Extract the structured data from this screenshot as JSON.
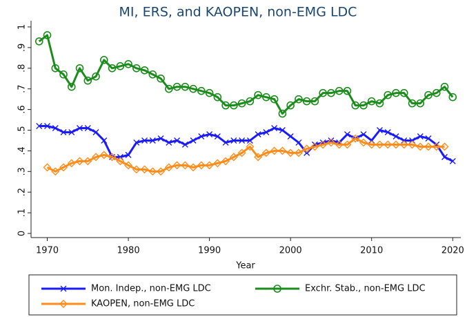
{
  "chart_data": {
    "type": "line",
    "title": "MI, ERS, and KAOPEN, non-EMG LDC",
    "x_label": "Year",
    "x": [
      1969,
      1970,
      1971,
      1972,
      1973,
      1974,
      1975,
      1976,
      1977,
      1978,
      1979,
      1980,
      1981,
      1982,
      1983,
      1984,
      1985,
      1986,
      1987,
      1988,
      1989,
      1990,
      1991,
      1992,
      1993,
      1994,
      1995,
      1996,
      1997,
      1998,
      1999,
      2000,
      2001,
      2002,
      2003,
      2004,
      2005,
      2006,
      2007,
      2008,
      2009,
      2010,
      2011,
      2012,
      2013,
      2014,
      2015,
      2016,
      2017,
      2018,
      2019,
      2020
    ],
    "series": [
      {
        "name": "Mon. Indep., non-EMG LDC",
        "color": "#1a1aff",
        "marker": "x",
        "values": [
          0.52,
          0.52,
          0.51,
          0.49,
          0.49,
          0.51,
          0.51,
          0.49,
          0.45,
          0.37,
          0.37,
          0.38,
          0.44,
          0.45,
          0.45,
          0.46,
          0.44,
          0.45,
          0.43,
          0.45,
          0.47,
          0.48,
          0.47,
          0.44,
          0.45,
          0.45,
          0.45,
          0.48,
          0.49,
          0.51,
          0.5,
          0.47,
          0.44,
          0.39,
          0.43,
          0.44,
          0.45,
          0.44,
          0.48,
          0.46,
          0.48,
          0.45,
          0.5,
          0.49,
          0.47,
          0.45,
          0.45,
          0.47,
          0.46,
          0.43,
          0.37,
          0.35
        ]
      },
      {
        "name": "Exchr. Stab., non-EMG LDC",
        "color": "#1a8c1a",
        "marker": "circle",
        "values": [
          0.93,
          0.96,
          0.8,
          0.77,
          0.71,
          0.8,
          0.74,
          0.76,
          0.84,
          0.8,
          0.81,
          0.82,
          0.8,
          0.79,
          0.77,
          0.75,
          0.7,
          0.71,
          0.71,
          0.7,
          0.69,
          0.68,
          0.66,
          0.62,
          0.62,
          0.63,
          0.64,
          0.67,
          0.66,
          0.65,
          0.58,
          0.62,
          0.65,
          0.64,
          0.64,
          0.68,
          0.68,
          0.69,
          0.69,
          0.62,
          0.62,
          0.64,
          0.63,
          0.67,
          0.68,
          0.68,
          0.63,
          0.63,
          0.67,
          0.68,
          0.71,
          0.66
        ]
      },
      {
        "name": "KAOPEN, non-EMG LDC",
        "color": "#ff8c1a",
        "marker": "diamond",
        "values": [
          null,
          0.32,
          0.3,
          0.32,
          0.34,
          0.35,
          0.35,
          0.37,
          0.38,
          0.37,
          0.35,
          0.33,
          0.31,
          0.31,
          0.3,
          0.3,
          0.32,
          0.33,
          0.33,
          0.32,
          0.33,
          0.33,
          0.34,
          0.35,
          0.37,
          0.39,
          0.42,
          0.37,
          0.39,
          0.4,
          0.4,
          0.39,
          0.39,
          0.41,
          0.42,
          0.43,
          0.44,
          0.43,
          0.43,
          0.46,
          0.44,
          0.43,
          0.43,
          0.43,
          0.43,
          0.43,
          0.43,
          0.42,
          0.42,
          0.42,
          0.42,
          null
        ]
      }
    ],
    "xlim": [
      1968,
      2021
    ],
    "xticks": [
      1970,
      1980,
      1990,
      2000,
      2010,
      2020
    ],
    "ylim": [
      -0.02,
      1.03
    ],
    "yticks": [
      0,
      {
        "value": 0.1,
        "label": ".1"
      },
      {
        "value": 0.2,
        "label": ".2"
      },
      {
        "value": 0.3,
        "label": ".3"
      },
      {
        "value": 0.4,
        "label": ".4"
      },
      {
        "value": 0.5,
        "label": ".5"
      },
      {
        "value": 0.6,
        "label": ".6"
      },
      {
        "value": 0.7,
        "label": ".7"
      },
      {
        "value": 0.8,
        "label": ".8"
      },
      {
        "value": 0.9,
        "label": ".9"
      },
      1
    ],
    "grid": false,
    "legend": "bottom"
  }
}
